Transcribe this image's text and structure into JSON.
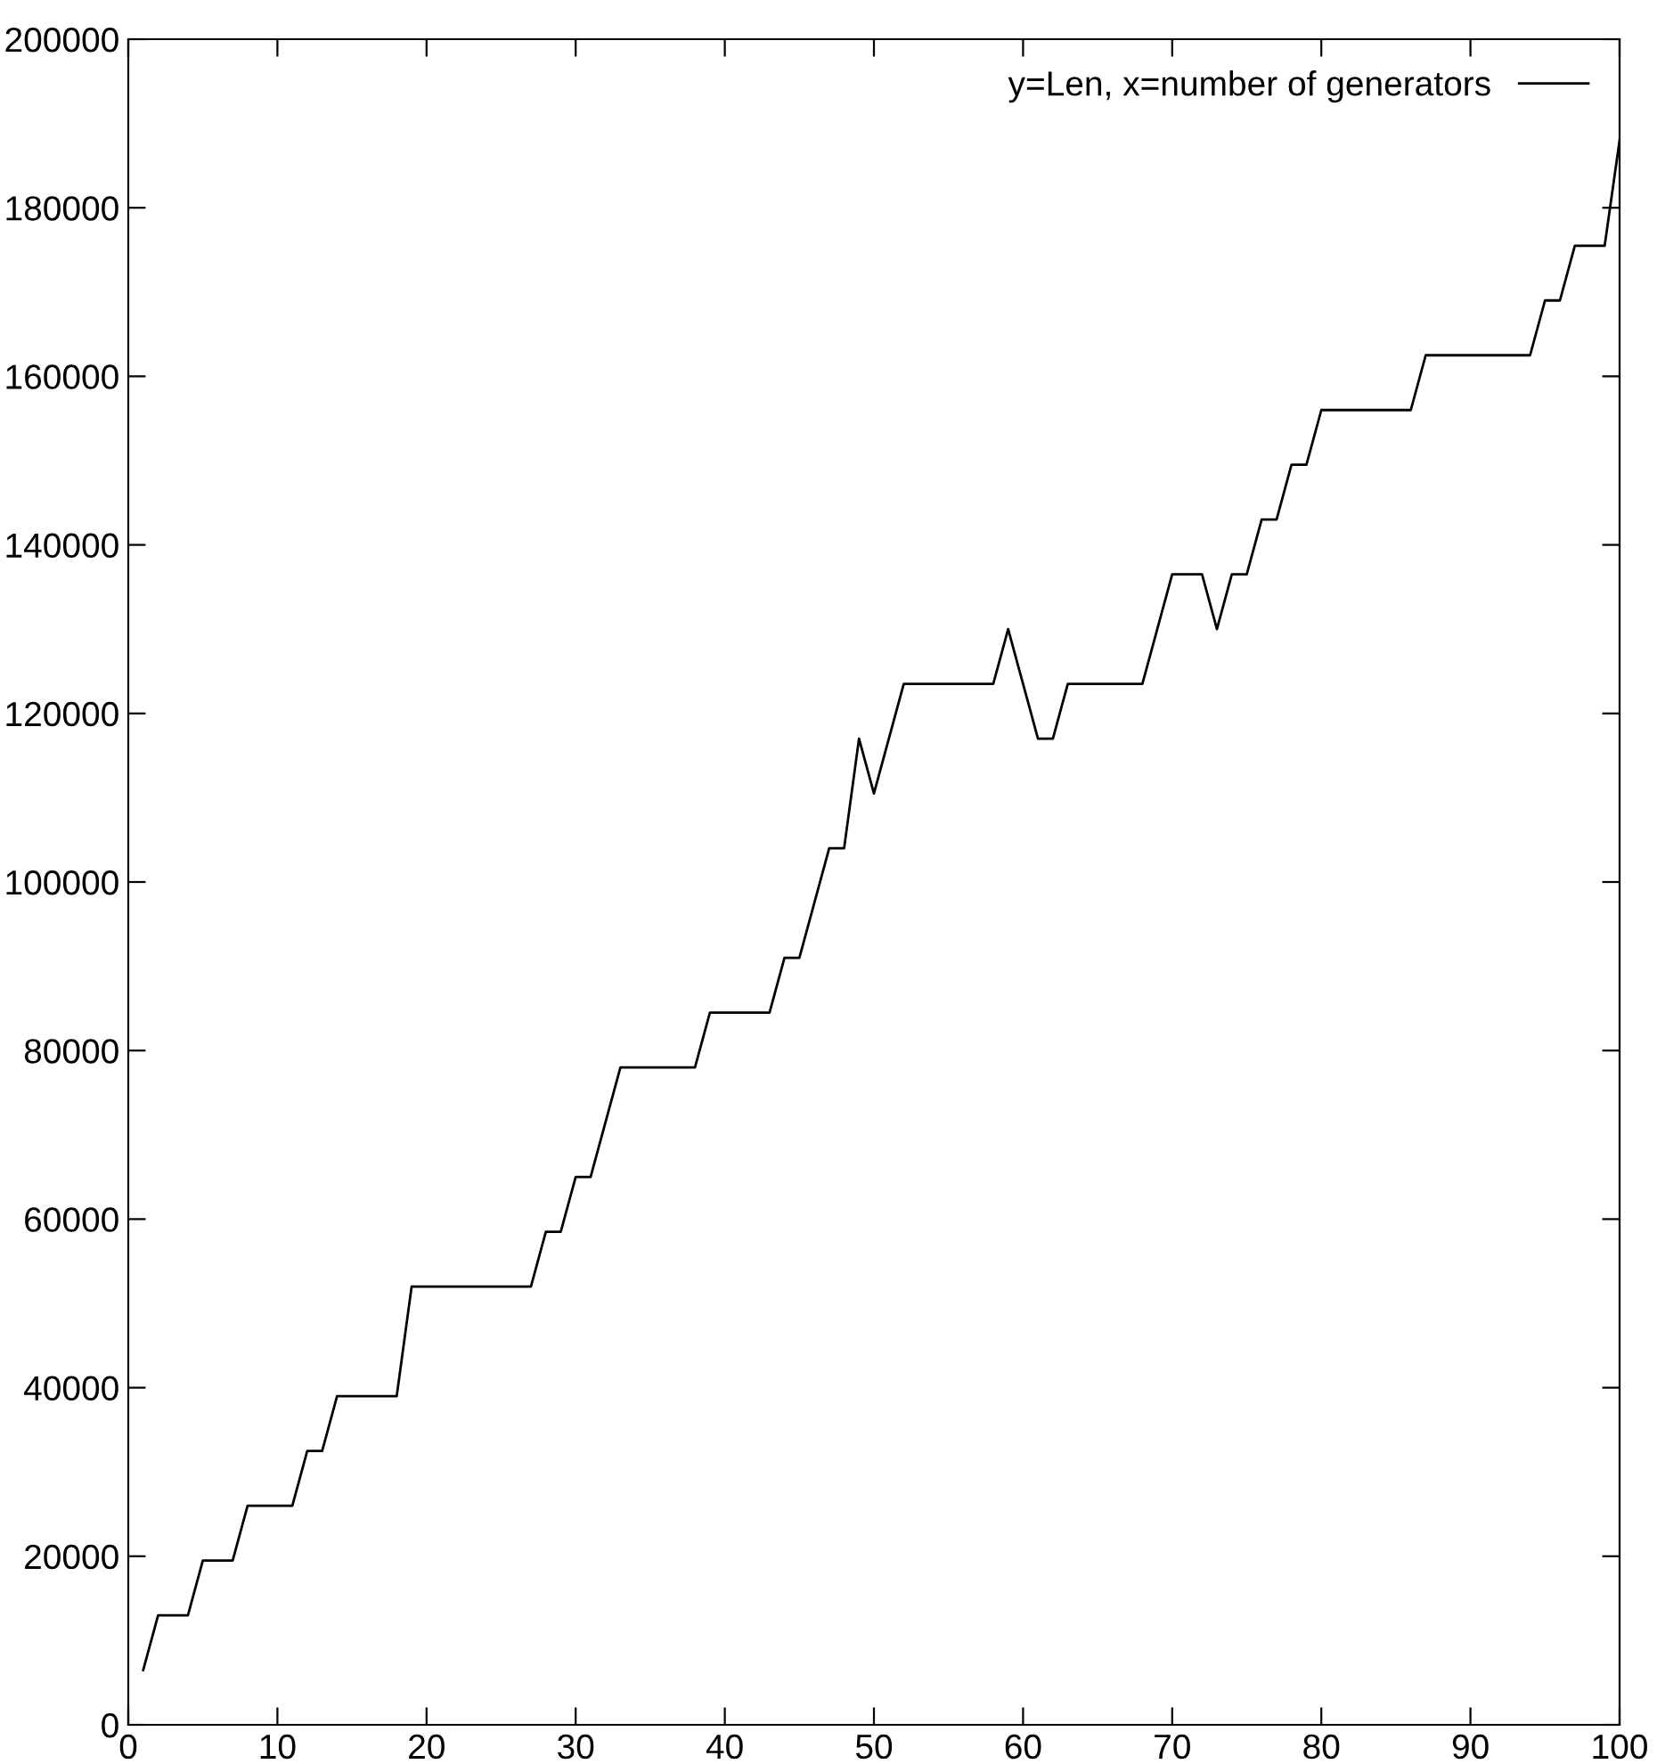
{
  "chart_data": {
    "type": "line",
    "x": [
      1,
      2,
      3,
      4,
      5,
      6,
      7,
      8,
      9,
      10,
      11,
      12,
      13,
      14,
      15,
      16,
      17,
      18,
      19,
      20,
      21,
      22,
      23,
      24,
      25,
      26,
      27,
      28,
      29,
      30,
      31,
      32,
      33,
      34,
      35,
      36,
      37,
      38,
      39,
      40,
      41,
      42,
      43,
      44,
      45,
      46,
      47,
      48,
      49,
      50,
      51,
      52,
      53,
      54,
      55,
      56,
      57,
      58,
      59,
      60,
      61,
      62,
      63,
      64,
      65,
      66,
      67,
      68,
      69,
      70,
      71,
      72,
      73,
      74,
      75,
      76,
      77,
      78,
      79,
      80,
      81,
      82,
      83,
      84,
      85,
      86,
      87,
      88,
      89,
      90,
      91,
      92,
      93,
      94,
      95,
      96,
      97,
      98,
      99,
      100
    ],
    "series": [
      {
        "name": "y=Len, x=number of generators",
        "color": "#000000",
        "values": [
          6500,
          13000,
          13000,
          13000,
          19500,
          19500,
          19500,
          26000,
          26000,
          26000,
          26000,
          32500,
          32500,
          39000,
          39000,
          39000,
          39000,
          39000,
          52000,
          52000,
          52000,
          52000,
          52000,
          52000,
          52000,
          52000,
          52000,
          58500,
          58500,
          65000,
          65000,
          71500,
          78000,
          78000,
          78000,
          78000,
          78000,
          78000,
          84500,
          84500,
          84500,
          84500,
          84500,
          91000,
          91000,
          97500,
          104000,
          104000,
          117000,
          110500,
          117000,
          123500,
          123500,
          123500,
          123500,
          123500,
          123500,
          123500,
          130000,
          123500,
          117000,
          117000,
          123500,
          123500,
          123500,
          123500,
          123500,
          123500,
          130000,
          136500,
          136500,
          136500,
          130000,
          136500,
          136500,
          143000,
          143000,
          149500,
          149500,
          156000,
          156000,
          156000,
          156000,
          156000,
          156000,
          156000,
          162500,
          162500,
          162500,
          162500,
          162500,
          162500,
          162500,
          162500,
          169000,
          169000,
          175500,
          175500,
          175500,
          188000
        ]
      }
    ],
    "xlim": [
      0,
      100
    ],
    "xticks": [
      0,
      10,
      20,
      30,
      40,
      50,
      60,
      70,
      80,
      90,
      100
    ],
    "ylim": [
      0,
      200000
    ],
    "yticks": [
      0,
      20000,
      40000,
      60000,
      80000,
      100000,
      120000,
      140000,
      160000,
      180000,
      200000
    ],
    "grid": false,
    "legend": "top right",
    "line_style": "solid",
    "marker": "none"
  }
}
